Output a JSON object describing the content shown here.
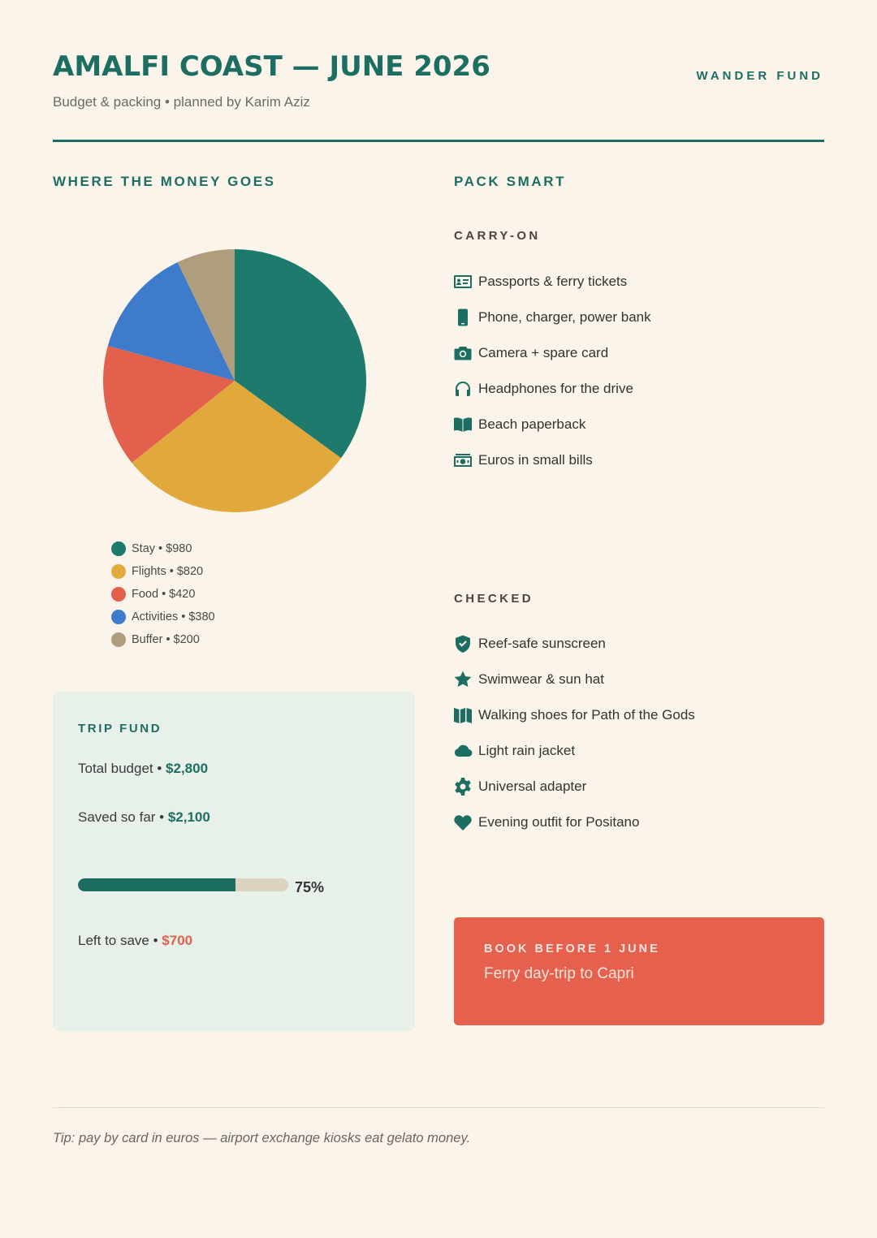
{
  "header": {
    "title": "AMALFI COAST — JUNE 2026",
    "subtitle": "Budget & packing • planned by Karim Aziz",
    "brand": "WANDER FUND"
  },
  "money": {
    "heading": "WHERE THE MONEY GOES"
  },
  "chart_data": {
    "type": "pie",
    "categories": [
      "Stay",
      "Flights",
      "Food",
      "Activities",
      "Buffer"
    ],
    "values": [
      980,
      820,
      420,
      380,
      200
    ],
    "colors": [
      "#1d7a6c",
      "#e1a83c",
      "#e2604c",
      "#3f7bcb",
      "#b09d7b"
    ],
    "legend_labels": [
      "Stay • $980",
      "Flights • $820",
      "Food • $420",
      "Activities • $380",
      "Buffer • $200"
    ],
    "legend": "below"
  },
  "fund": {
    "heading": "TRIP FUND",
    "total_label": "Total budget • ",
    "total_value": "$2,800",
    "saved_label": "Saved so far • ",
    "saved_value": "$2,100",
    "progress": 0.75,
    "progress_text": "75%",
    "left_label": "Left to save • ",
    "left_value": "$700"
  },
  "pack": {
    "heading": "PACK SMART",
    "carry_on_heading": "CARRY-ON",
    "carry_on": [
      {
        "icon": "id-card-icon",
        "label": "Passports & ferry tickets"
      },
      {
        "icon": "phone-icon",
        "label": "Phone, charger, power bank"
      },
      {
        "icon": "camera-icon",
        "label": "Camera + spare card"
      },
      {
        "icon": "headphones-icon",
        "label": "Headphones for the drive"
      },
      {
        "icon": "book-icon",
        "label": "Beach paperback"
      },
      {
        "icon": "money-icon",
        "label": "Euros in small bills"
      }
    ],
    "checked_heading": "CHECKED",
    "checked": [
      {
        "icon": "shield-icon",
        "label": "Reef-safe sunscreen"
      },
      {
        "icon": "star-icon",
        "label": "Swimwear & sun hat"
      },
      {
        "icon": "map-icon",
        "label": "Walking shoes for Path of the Gods"
      },
      {
        "icon": "cloud-icon",
        "label": "Light rain jacket"
      },
      {
        "icon": "gear-icon",
        "label": "Universal adapter"
      },
      {
        "icon": "heart-icon",
        "label": "Evening outfit for Positano"
      }
    ]
  },
  "cta": {
    "kicker": "BOOK BEFORE 1 JUNE",
    "text": "Ferry day-trip to Capri"
  },
  "footer": {
    "tip": "Tip: pay by card in euros — airport exchange kiosks eat gelato money."
  },
  "colors": {
    "accent": "#1d6e62",
    "alert": "#e5614e",
    "background": "#faf4ea"
  }
}
